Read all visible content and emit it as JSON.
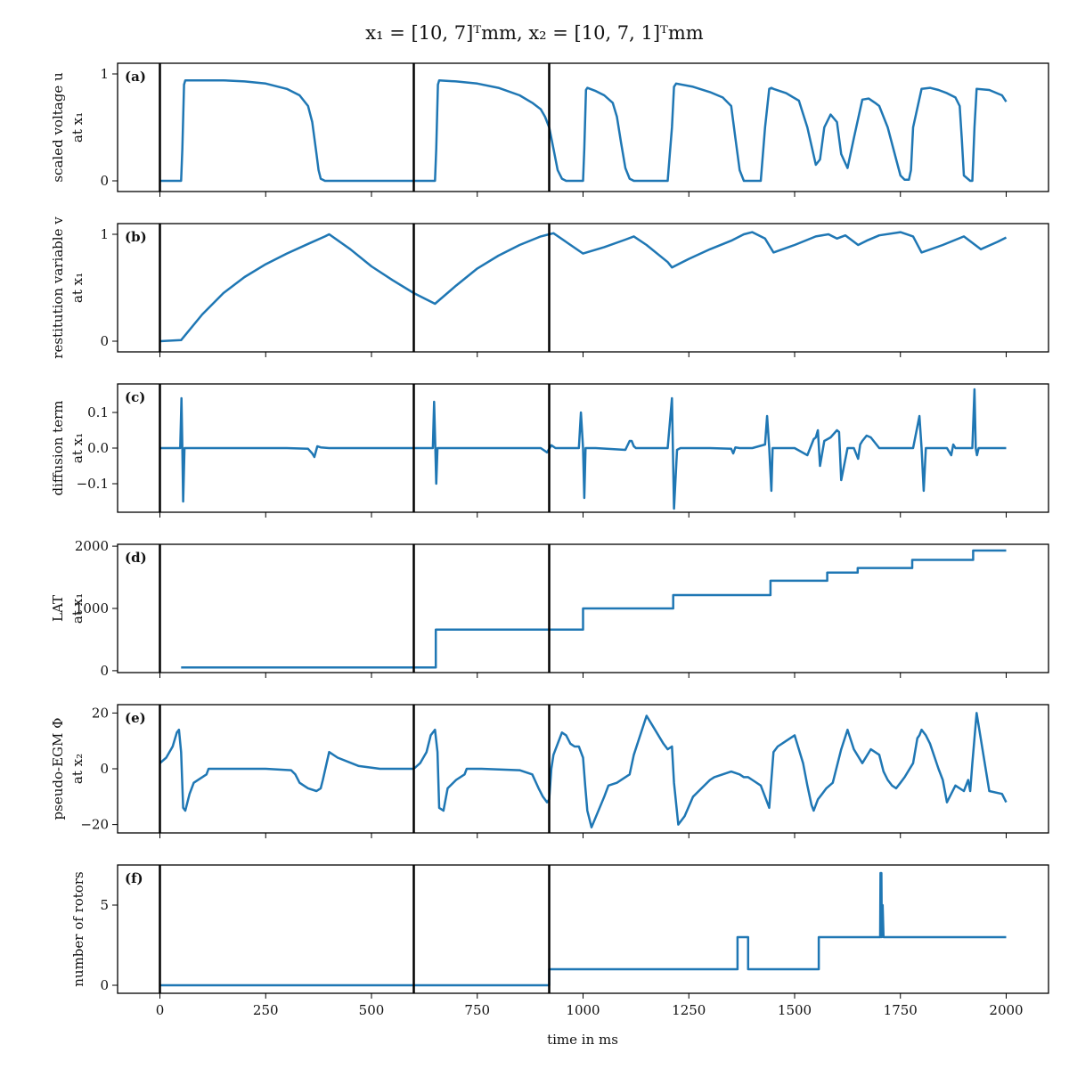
{
  "figure": {
    "title": "x₁ = [10, 7]ᵀmm, x₂ = [10, 7, 1]ᵀmm",
    "xlabel": "time in ms",
    "xlim": [
      -100,
      2100
    ],
    "xticks": [
      0,
      250,
      500,
      750,
      1000,
      1250,
      1500,
      1750,
      2000
    ],
    "xtick_labels": [
      "0",
      "250",
      "500",
      "750",
      "1000",
      "1250",
      "1500",
      "1750",
      "2000"
    ],
    "vertical_markers_ms": [
      0,
      600,
      920
    ],
    "series_color": "#1f77b4"
  },
  "chart_data": [
    {
      "type": "line",
      "panel": "(a)",
      "ylabel_lines": [
        "scaled voltage u",
        "at x₁"
      ],
      "ylim": [
        -0.1,
        1.1
      ],
      "yticks": [
        0,
        1
      ],
      "ytick_labels": [
        "0",
        "1"
      ],
      "x": [
        0,
        50,
        53,
        57,
        60,
        100,
        150,
        200,
        250,
        300,
        330,
        350,
        360,
        370,
        375,
        380,
        390,
        400,
        500,
        600,
        650,
        653,
        657,
        660,
        700,
        750,
        800,
        850,
        880,
        900,
        910,
        920,
        930,
        940,
        950,
        960,
        980,
        1000,
        1003,
        1007,
        1010,
        1030,
        1050,
        1070,
        1080,
        1090,
        1100,
        1110,
        1120,
        1200,
        1210,
        1215,
        1220,
        1260,
        1300,
        1330,
        1350,
        1360,
        1370,
        1380,
        1420,
        1430,
        1440,
        1445,
        1450,
        1480,
        1510,
        1530,
        1550,
        1560,
        1570,
        1585,
        1600,
        1610,
        1625,
        1640,
        1660,
        1675,
        1690,
        1700,
        1720,
        1740,
        1750,
        1760,
        1770,
        1775,
        1780,
        1800,
        1820,
        1840,
        1860,
        1880,
        1890,
        1895,
        1900,
        1915,
        1920,
        1925,
        1930,
        1960,
        1990,
        2000
      ],
      "y": [
        0,
        0,
        0.3,
        0.9,
        0.94,
        0.94,
        0.94,
        0.93,
        0.91,
        0.86,
        0.8,
        0.7,
        0.55,
        0.25,
        0.1,
        0.02,
        0,
        0,
        0,
        0,
        0,
        0.3,
        0.9,
        0.94,
        0.93,
        0.91,
        0.87,
        0.8,
        0.73,
        0.67,
        0.6,
        0.5,
        0.3,
        0.1,
        0.02,
        0,
        0,
        0,
        0.3,
        0.85,
        0.87,
        0.84,
        0.8,
        0.73,
        0.6,
        0.35,
        0.12,
        0.02,
        0,
        0,
        0.5,
        0.88,
        0.91,
        0.88,
        0.83,
        0.78,
        0.7,
        0.4,
        0.1,
        0,
        0,
        0.5,
        0.86,
        0.87,
        0.86,
        0.82,
        0.75,
        0.5,
        0.15,
        0.2,
        0.5,
        0.62,
        0.55,
        0.25,
        0.12,
        0.4,
        0.76,
        0.77,
        0.73,
        0.7,
        0.5,
        0.2,
        0.05,
        0.01,
        0.01,
        0.1,
        0.5,
        0.86,
        0.87,
        0.85,
        0.82,
        0.78,
        0.7,
        0.4,
        0.05,
        0,
        0,
        0.5,
        0.86,
        0.85,
        0.8,
        0.74
      ]
    },
    {
      "type": "line",
      "panel": "(b)",
      "ylabel_lines": [
        "restitution variable v",
        "at x₁"
      ],
      "ylim": [
        -0.1,
        1.1
      ],
      "yticks": [
        0,
        1
      ],
      "ytick_labels": [
        "0",
        "1"
      ],
      "x": [
        0,
        50,
        100,
        150,
        200,
        250,
        300,
        350,
        390,
        400,
        450,
        500,
        550,
        600,
        650,
        700,
        750,
        800,
        850,
        900,
        920,
        930,
        1000,
        1050,
        1100,
        1120,
        1150,
        1200,
        1210,
        1250,
        1300,
        1350,
        1380,
        1400,
        1430,
        1450,
        1500,
        1550,
        1580,
        1600,
        1620,
        1650,
        1670,
        1700,
        1750,
        1780,
        1800,
        1850,
        1900,
        1940,
        1980,
        2000
      ],
      "y": [
        0,
        0.01,
        0.25,
        0.45,
        0.6,
        0.72,
        0.82,
        0.91,
        0.98,
        1.0,
        0.86,
        0.7,
        0.57,
        0.45,
        0.35,
        0.52,
        0.68,
        0.8,
        0.9,
        0.98,
        1.0,
        1.01,
        0.82,
        0.88,
        0.95,
        0.98,
        0.9,
        0.74,
        0.69,
        0.77,
        0.86,
        0.94,
        1.0,
        1.02,
        0.96,
        0.83,
        0.9,
        0.98,
        1.0,
        0.96,
        0.99,
        0.9,
        0.94,
        0.99,
        1.02,
        0.98,
        0.83,
        0.9,
        0.98,
        0.86,
        0.93,
        0.97
      ]
    },
    {
      "type": "line",
      "panel": "(c)",
      "ylabel_lines": [
        "diffusion term",
        "at x₁"
      ],
      "ylim": [
        -0.18,
        0.18
      ],
      "yticks": [
        -0.1,
        0.0,
        0.1
      ],
      "ytick_labels": [
        "−0.1",
        "0.0",
        "0.1"
      ],
      "x": [
        0,
        48,
        51,
        53,
        55,
        58,
        62,
        100,
        200,
        300,
        350,
        360,
        365,
        372,
        380,
        400,
        500,
        600,
        645,
        648,
        651,
        653,
        656,
        660,
        700,
        900,
        915,
        925,
        935,
        945,
        990,
        995,
        1000,
        1003,
        1006,
        1010,
        1030,
        1100,
        1110,
        1115,
        1120,
        1125,
        1130,
        1140,
        1200,
        1210,
        1215,
        1222,
        1230,
        1240,
        1300,
        1350,
        1355,
        1360,
        1370,
        1400,
        1430,
        1435,
        1440,
        1445,
        1448,
        1455,
        1470,
        1500,
        1530,
        1545,
        1550,
        1555,
        1560,
        1570,
        1585,
        1600,
        1605,
        1610,
        1625,
        1640,
        1650,
        1655,
        1660,
        1670,
        1680,
        1700,
        1720,
        1740,
        1760,
        1780,
        1795,
        1800,
        1805,
        1810,
        1830,
        1860,
        1870,
        1875,
        1880,
        1900,
        1920,
        1925,
        1928,
        1931,
        1935,
        1940,
        2000
      ],
      "y": [
        0,
        0,
        0.14,
        0,
        -0.15,
        0,
        0,
        0,
        0,
        0,
        -0.002,
        -0.015,
        -0.025,
        0.005,
        0.002,
        0,
        0,
        0,
        0,
        0.13,
        0,
        -0.1,
        0,
        0,
        0,
        0,
        -0.012,
        0.008,
        0,
        0,
        0,
        0.1,
        0,
        -0.14,
        0,
        0,
        0,
        -0.005,
        0.02,
        0.02,
        0.005,
        0,
        0,
        0,
        0,
        0.14,
        -0.17,
        -0.005,
        0,
        0,
        0,
        -0.002,
        -0.015,
        0.002,
        0,
        0,
        0.01,
        0.09,
        0,
        -0.12,
        0,
        0,
        0,
        0,
        -0.02,
        0.025,
        0.03,
        0.05,
        -0.05,
        0.02,
        0.03,
        0.05,
        0.045,
        -0.09,
        0,
        0,
        -0.03,
        0.01,
        0.02,
        0.035,
        0.03,
        0,
        0,
        0,
        0,
        0,
        0.09,
        0,
        -0.12,
        0,
        0,
        0,
        -0.02,
        0.01,
        0,
        0,
        0,
        0.165,
        0,
        -0.02,
        0,
        0,
        0
      ]
    },
    {
      "type": "line",
      "panel": "(d)",
      "ylabel_lines": [
        "LAT",
        "at x₁"
      ],
      "ylim": [
        -30,
        2030
      ],
      "yticks": [
        0,
        1000,
        2000
      ],
      "ytick_labels": [
        "0",
        "1000",
        "2000"
      ],
      "x": [
        -3000,
        50,
        50,
        652,
        652,
        1000,
        1000,
        1213,
        1213,
        1443,
        1443,
        1577,
        1577,
        1649,
        1649,
        1778,
        1778,
        1922,
        1922,
        2000
      ],
      "y": [
        null,
        null,
        52,
        52,
        660,
        660,
        1000,
        1000,
        1215,
        1215,
        1445,
        1445,
        1575,
        1575,
        1650,
        1650,
        1780,
        1780,
        1930,
        1930
      ]
    },
    {
      "type": "line",
      "panel": "(e)",
      "ylabel_lines": [
        "pseudo-EGM Φ",
        "at x₂"
      ],
      "ylim": [
        -23,
        23
      ],
      "yticks": [
        -20,
        0,
        20
      ],
      "ytick_labels": [
        "−20",
        "0",
        "20"
      ],
      "x": [
        0,
        15,
        30,
        40,
        45,
        50,
        55,
        60,
        70,
        80,
        100,
        110,
        115,
        150,
        250,
        310,
        320,
        330,
        340,
        350,
        370,
        380,
        385,
        400,
        420,
        470,
        520,
        600,
        615,
        630,
        640,
        650,
        656,
        660,
        670,
        680,
        700,
        720,
        725,
        760,
        850,
        880,
        895,
        905,
        915,
        920,
        925,
        930,
        950,
        960,
        970,
        980,
        990,
        1000,
        1005,
        1010,
        1020,
        1050,
        1060,
        1080,
        1100,
        1110,
        1120,
        1150,
        1170,
        1190,
        1200,
        1210,
        1215,
        1225,
        1240,
        1260,
        1300,
        1310,
        1350,
        1370,
        1380,
        1390,
        1400,
        1420,
        1430,
        1440,
        1450,
        1460,
        1480,
        1500,
        1520,
        1530,
        1540,
        1545,
        1555,
        1565,
        1575,
        1590,
        1610,
        1625,
        1640,
        1660,
        1680,
        1700,
        1710,
        1720,
        1730,
        1740,
        1750,
        1760,
        1780,
        1790,
        1795,
        1800,
        1810,
        1820,
        1840,
        1850,
        1860,
        1880,
        1900,
        1910,
        1915,
        1920,
        1925,
        1930,
        1960,
        1990,
        2000
      ],
      "y": [
        2,
        4,
        8,
        13,
        14,
        6,
        -14,
        -15,
        -9,
        -5,
        -3,
        -2,
        0,
        0,
        0,
        -0.5,
        -2,
        -5,
        -6,
        -7,
        -8,
        -7,
        -4,
        6,
        4,
        1,
        0,
        0,
        2,
        6,
        12,
        14,
        6,
        -14,
        -15,
        -7,
        -4,
        -2,
        0,
        0,
        -0.5,
        -2,
        -7,
        -10,
        -12,
        -11,
        0,
        5,
        13,
        12,
        9,
        8,
        8,
        4,
        -6,
        -15,
        -21,
        -10,
        -6,
        -5,
        -3,
        -2,
        5,
        19,
        14,
        9,
        7,
        8,
        -5,
        -20,
        -17,
        -10,
        -4,
        -3,
        -1,
        -2,
        -3,
        -3,
        -4,
        -6,
        -10,
        -14,
        6,
        8,
        10,
        12,
        2,
        -6,
        -13,
        -15,
        -11,
        -9,
        -7,
        -5,
        7,
        14,
        7,
        2,
        7,
        5,
        -1,
        -4,
        -6,
        -7,
        -5,
        -3,
        2,
        11,
        12,
        14,
        12,
        9,
        0,
        -4,
        -12,
        -6,
        -8,
        -4,
        -8,
        2,
        11,
        20,
        -8,
        -9,
        -12
      ]
    },
    {
      "type": "line",
      "panel": "(f)",
      "ylabel_lines": [
        "number of rotors"
      ],
      "ylim": [
        -0.5,
        7.5
      ],
      "yticks": [
        0,
        5
      ],
      "ytick_labels": [
        "0",
        "5"
      ],
      "x": [
        0,
        920,
        920,
        1365,
        1365,
        1390,
        1390,
        1557,
        1557,
        1702,
        1703,
        1704,
        1705,
        1706,
        1708,
        1710,
        1712,
        2000
      ],
      "y": [
        0,
        0,
        1,
        1,
        3,
        3,
        1,
        1,
        3,
        3,
        7,
        3,
        7,
        3,
        5,
        3,
        3,
        3
      ]
    }
  ]
}
